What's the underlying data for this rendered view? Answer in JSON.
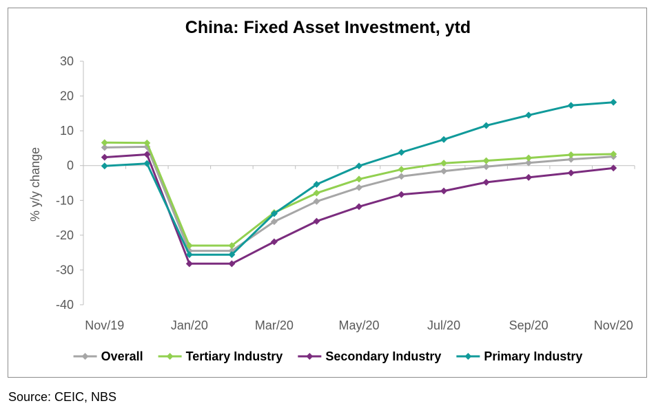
{
  "chart_data": {
    "type": "line",
    "title": "China: Fixed Asset Investment, ytd",
    "ylabel": "% y/y change",
    "xlabel": "",
    "ylim": [
      -40,
      30
    ],
    "yticks": [
      30,
      20,
      10,
      0,
      -10,
      -20,
      -30,
      -40
    ],
    "x": [
      "Nov/19",
      "Dec/19",
      "Jan/20",
      "Feb/20",
      "Mar/20",
      "Apr/20",
      "May/20",
      "Jun/20",
      "Jul/20",
      "Aug/20",
      "Sep/20",
      "Oct/20",
      "Nov/20"
    ],
    "xtick_labels": [
      "Nov/19",
      "Jan/20",
      "Mar/20",
      "May/20",
      "Jul/20",
      "Sep/20",
      "Nov/20"
    ],
    "legend_position": "bottom",
    "grid": false,
    "series": [
      {
        "name": "Overall",
        "color": "#a6a6a6",
        "values": [
          5.2,
          5.4,
          -24.5,
          -24.5,
          -16.1,
          -10.3,
          -6.3,
          -3.1,
          -1.6,
          -0.3,
          0.8,
          1.8,
          2.6
        ]
      },
      {
        "name": "Tertiary Industry",
        "color": "#92d050",
        "values": [
          6.6,
          6.5,
          -23.0,
          -23.0,
          -13.5,
          -7.9,
          -3.9,
          -1.1,
          0.7,
          1.4,
          2.2,
          3.1,
          3.3
        ]
      },
      {
        "name": "Secondary Industry",
        "color": "#7b2c7e",
        "values": [
          2.4,
          3.2,
          -28.2,
          -28.2,
          -21.9,
          -16.0,
          -11.8,
          -8.3,
          -7.3,
          -4.8,
          -3.4,
          -2.1,
          -0.7
        ]
      },
      {
        "name": "Primary Industry",
        "color": "#109a9a",
        "values": [
          -0.1,
          0.6,
          -25.6,
          -25.6,
          -13.8,
          -5.4,
          -0.1,
          3.8,
          7.5,
          11.5,
          14.5,
          17.3,
          18.2
        ]
      }
    ]
  },
  "source_text": "Source: CEIC, NBS"
}
